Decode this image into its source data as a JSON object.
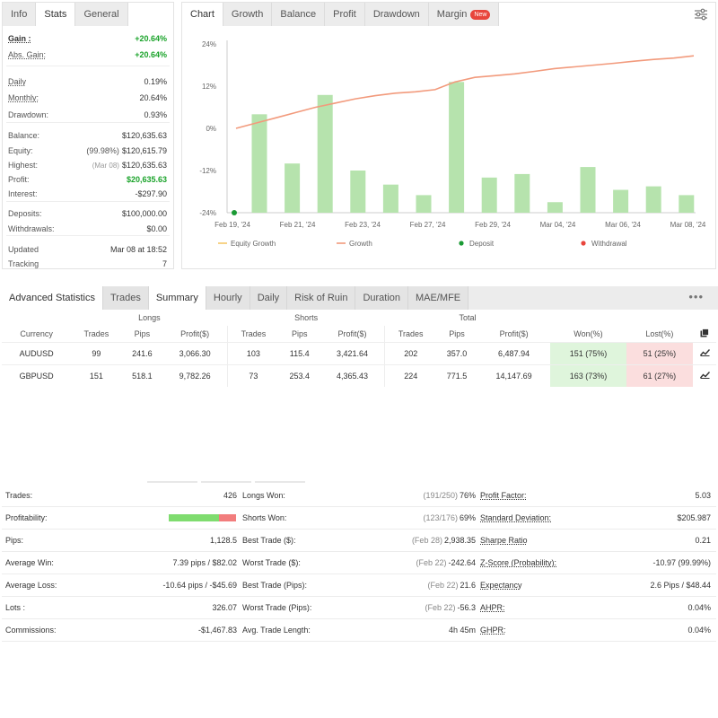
{
  "left_panel": {
    "tabs": [
      "Info",
      "Stats",
      "General"
    ],
    "rows": [
      {
        "key": "Gain :",
        "value": "+20.64%",
        "style": "green-bold"
      },
      {
        "key": "Abs. Gain:",
        "value": "+20.64%",
        "style": "green-bold"
      },
      {
        "key": "Daily",
        "value": "0.19%"
      },
      {
        "key": "Monthly:",
        "value": "20.64%"
      },
      {
        "key": "Drawdown:",
        "value": "0.93%"
      },
      {
        "key": "Balance:",
        "value": "$120,635.63"
      },
      {
        "key": "Equity:",
        "prefix": "(99.98%)",
        "value": "$120,615.79"
      },
      {
        "key": "Highest:",
        "prefix": "(Mar 08)",
        "value": "$120,635.63"
      },
      {
        "key": "Profit:",
        "value": "$20,635.63",
        "style": "green"
      },
      {
        "key": "Interest:",
        "value": "-$297.90"
      },
      {
        "key": "Deposits:",
        "value": "$100,000.00"
      },
      {
        "key": "Withdrawals:",
        "value": "$0.00"
      },
      {
        "key": "Updated",
        "value": "Mar 08 at 18:52"
      },
      {
        "key": "Tracking",
        "value": "7"
      }
    ]
  },
  "chart_panel": {
    "tabs": [
      "Chart",
      "Growth",
      "Balance",
      "Profit",
      "Drawdown",
      "Margin"
    ],
    "badge": "New",
    "settings_icon": "sliders-icon"
  },
  "chart_data": {
    "type": "bar",
    "y_ticks": [
      "24%",
      "12%",
      "0%",
      "-12%",
      "-24%"
    ],
    "ylim": [
      -24,
      24
    ],
    "x_ticks": [
      "Feb 19, '24",
      "Feb 21, '24",
      "Feb 23, '24",
      "Feb 27, '24",
      "Feb 29, '24",
      "Mar 04, '24",
      "Mar 06, '24",
      "Mar 08, '24"
    ],
    "series": [
      {
        "kind": "bar",
        "color": "#b6e3ad",
        "values": [
          4,
          -10,
          9.5,
          -12,
          -16,
          -19,
          13.2,
          -14,
          -13,
          -21,
          -11,
          -17.5,
          -16.5,
          -19
        ]
      },
      {
        "name": "Growth",
        "kind": "line",
        "color": "#f29a7c",
        "values": [
          0,
          1.5,
          3,
          4.5,
          6,
          7.2,
          8.4,
          9.3,
          10,
          10.4,
          11,
          13.2,
          14.5,
          15,
          15.5,
          16.2,
          17,
          17.5,
          18,
          18.5,
          19.1,
          19.6,
          20,
          20.64
        ]
      },
      {
        "name": "Deposit",
        "kind": "point",
        "color": "#1a9a34",
        "x": 0.0,
        "value": -24
      }
    ],
    "legend": [
      {
        "label": "Equity Growth",
        "color": "#f5c86a",
        "marker": "line"
      },
      {
        "label": "Growth",
        "color": "#f29a7c",
        "marker": "line"
      },
      {
        "label": "Deposit",
        "color": "#1a9a34",
        "marker": "dot"
      },
      {
        "label": "Withdrawal",
        "color": "#e8453c",
        "marker": "dot"
      }
    ]
  },
  "advanced": {
    "title": "Advanced Statistics",
    "tabs": [
      "Trades",
      "Summary",
      "Hourly",
      "Daily",
      "Risk of Ruin",
      "Duration",
      "MAE/MFE"
    ],
    "more_label": "•••",
    "groups": [
      "Longs",
      "Shorts",
      "Total"
    ],
    "headers": [
      "Currency",
      "Trades",
      "Pips",
      "Profit($)",
      "Trades",
      "Pips",
      "Profit($)",
      "Trades",
      "Pips",
      "Profit($)",
      "Won(%)",
      "Lost(%)"
    ],
    "rows": [
      [
        "AUDUSD",
        "99",
        "241.6",
        "3,066.30",
        "103",
        "115.4",
        "3,421.64",
        "202",
        "357.0",
        "6,487.94",
        "151 (75%)",
        "51 (25%)"
      ],
      [
        "GBPUSD",
        "151",
        "518.1",
        "9,782.26",
        "73",
        "253.4",
        "4,365.43",
        "224",
        "771.5",
        "14,147.69",
        "163 (73%)",
        "61 (27%)"
      ]
    ]
  },
  "summary": {
    "rows": [
      {
        "k1": "Trades:",
        "v1": "426",
        "k2": "Longs Won:",
        "p2": "(191/250)",
        "v2": "76%",
        "k3": "Profit Factor:",
        "v3": "5.03"
      },
      {
        "k1": "Profitability:",
        "v1": "",
        "k2": "Shorts Won:",
        "p2": "(123/176)",
        "v2": "69%",
        "k3": "Standard Deviation:",
        "v3": "$205.987"
      },
      {
        "k1": "Pips:",
        "v1": "1,128.5",
        "k2": "Best Trade ($):",
        "p2": "(Feb 28)",
        "v2": "2,938.35",
        "k3": "Sharpe Ratio",
        "v3": "0.21"
      },
      {
        "k1": "Average Win:",
        "v1": "7.39 pips / $82.02",
        "k2": "Worst Trade ($):",
        "p2": "(Feb 22)",
        "v2": "-242.64",
        "k3": "Z-Score (Probability):",
        "v3": "-10.97 (99.99%)"
      },
      {
        "k1": "Average Loss:",
        "v1": "-10.64 pips / -$45.69",
        "k2": "Best Trade (Pips):",
        "p2": "(Feb 22)",
        "v2": "21.6",
        "k3": "Expectancy",
        "v3": "2.6 Pips / $48.44"
      },
      {
        "k1": "Lots :",
        "v1": "326.07",
        "k2": "Worst Trade (Pips):",
        "p2": "(Feb 22)",
        "v2": "-56.3",
        "k3": "AHPR:",
        "v3": "0.04%"
      },
      {
        "k1": "Commissions:",
        "v1": "-$1,467.83",
        "k2": "Avg. Trade Length:",
        "p2": "",
        "v2": "4h 45m",
        "k3": "GHPR:",
        "v3": "0.04%"
      }
    ],
    "profitability_won_fraction": 0.74
  }
}
